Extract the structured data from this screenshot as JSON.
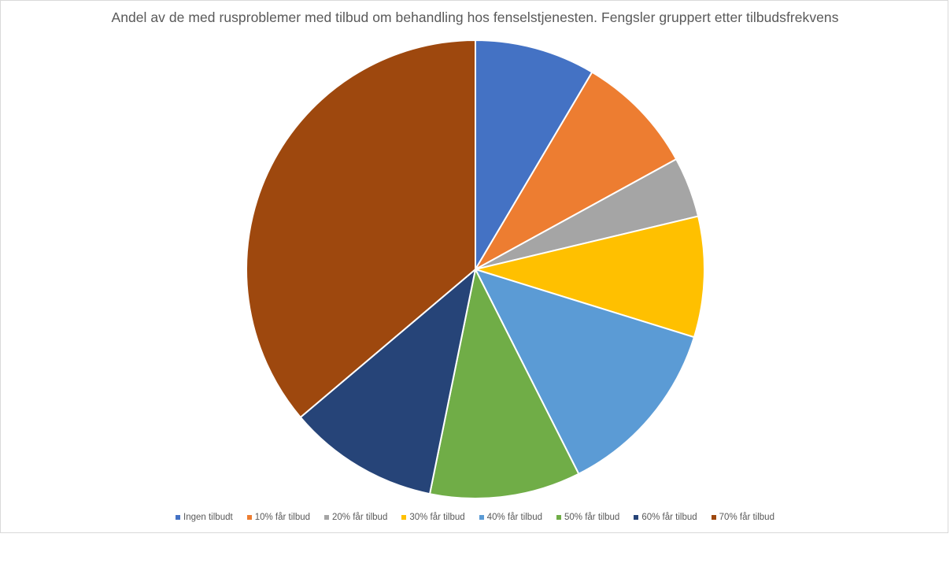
{
  "chart": {
    "title": "Andel av de med rusproblemer med tilbud om behandling hos fenselstjenesten. Fengsler gruppert etter tilbudsfrekvens"
  },
  "legend": [
    {
      "label": "Ingen tilbudt",
      "color": "#4472C4"
    },
    {
      "label": "10% får tilbud",
      "color": "#ED7D31"
    },
    {
      "label": "20% får tilbud",
      "color": "#A5A5A5"
    },
    {
      "label": "30% får tilbud",
      "color": "#FFC000"
    },
    {
      "label": "40% får tilbud",
      "color": "#5B9BD5"
    },
    {
      "label": "50% får tilbud",
      "color": "#70AD47"
    },
    {
      "label": "60% får tilbud",
      "color": "#264478"
    },
    {
      "label": "70% får tilbud",
      "color": "#9E480E"
    }
  ],
  "chart_data": {
    "type": "pie",
    "title": "Andel av de med rusproblemer med tilbud om behandling hos fenselstjenesten. Fengsler gruppert etter tilbudsfrekvens",
    "categories": [
      "Ingen tilbudt",
      "10% får tilbud",
      "20% får tilbud",
      "30% får tilbud",
      "40% får tilbud",
      "50% får tilbud",
      "60% får tilbud",
      "70% får tilbud"
    ],
    "values": [
      4,
      4,
      2,
      4,
      6,
      5,
      5,
      17
    ],
    "percentages": [
      8.5,
      8.5,
      4.3,
      8.5,
      12.8,
      10.6,
      10.6,
      36.2
    ],
    "colors": [
      "#4472C4",
      "#ED7D31",
      "#A5A5A5",
      "#FFC000",
      "#5B9BD5",
      "#70AD47",
      "#264478",
      "#9E480E"
    ],
    "start_angle": "top, clockwise",
    "data_labels": false,
    "legend_position": "bottom"
  }
}
